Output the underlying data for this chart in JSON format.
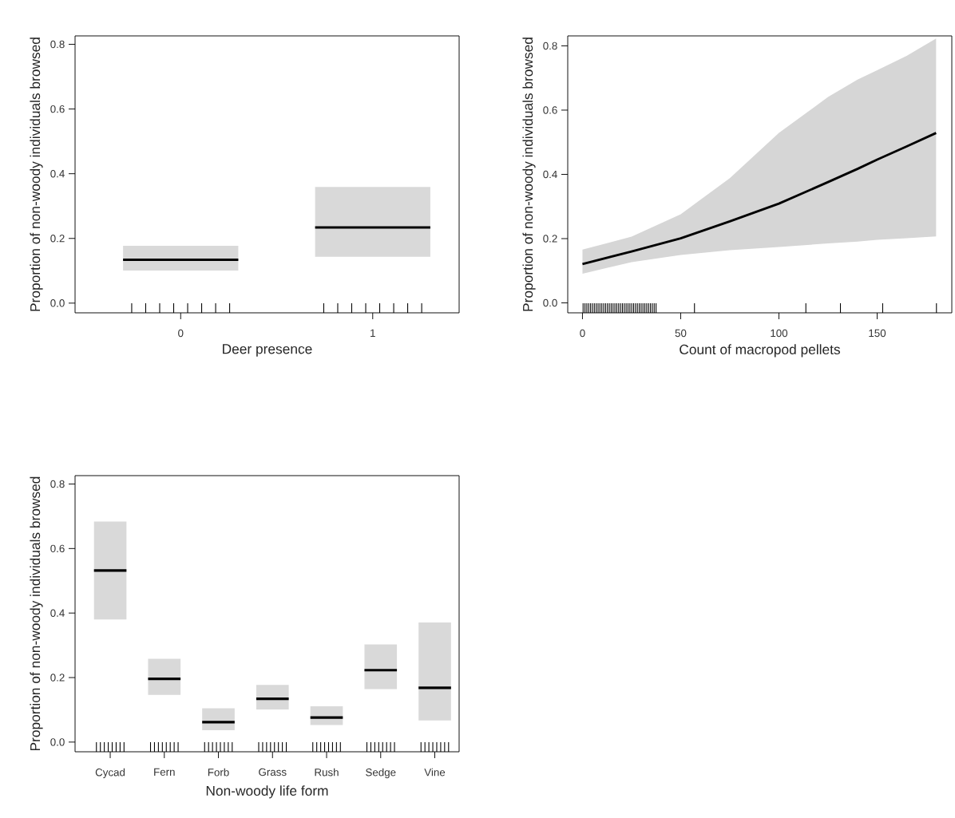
{
  "chart_data": [
    {
      "type": "box",
      "categories": [
        "0",
        "1"
      ],
      "xlabel": "Deer presence",
      "ylabel": "Proportion of non-woody individuals browsed",
      "ylim": [
        -0.03,
        0.826
      ],
      "yticks": [
        {
          "value": 0,
          "label": "0.0"
        },
        {
          "value": 0.2,
          "label": "0.2"
        },
        {
          "value": 0.4,
          "label": "0.4"
        },
        {
          "value": 0.6,
          "label": "0.6"
        },
        {
          "value": 0.8,
          "label": "0.8"
        }
      ],
      "series": [
        {
          "color": "#d9d9d9",
          "boxes": [
            {
              "low": 0.101,
              "q1": 0.101,
              "median": 0.134,
              "q3": 0.177,
              "high": 0.177
            },
            {
              "low": 0.143,
              "q1": 0.143,
              "median": 0.234,
              "q3": 0.359,
              "high": 0.359
            }
          ]
        }
      ]
    },
    {
      "type": "line",
      "xlabel": "Count of macropod pellets",
      "ylabel": "Proportion of non-woody individuals browsed",
      "xlim": [
        -7.5,
        188
      ],
      "ylim": [
        -0.031,
        0.831
      ],
      "xticks": [
        0,
        50,
        100,
        150
      ],
      "yticks": [
        {
          "value": 0,
          "label": "0.0"
        },
        {
          "value": 0.2,
          "label": "0.2"
        },
        {
          "value": 0.4,
          "label": "0.4"
        },
        {
          "value": 0.6,
          "label": "0.6"
        },
        {
          "value": 0.8,
          "label": "0.8"
        }
      ],
      "series": [
        {
          "color": "#000000",
          "x": [
            0,
            25,
            50,
            75,
            100,
            125,
            140,
            150,
            165,
            180
          ],
          "values": [
            0.121,
            0.16,
            0.201,
            0.254,
            0.309,
            0.376,
            0.417,
            0.446,
            0.487,
            0.529
          ],
          "lower": [
            0.091,
            0.127,
            0.149,
            0.164,
            0.174,
            0.185,
            0.191,
            0.196,
            0.201,
            0.207
          ],
          "upper": [
            0.166,
            0.206,
            0.276,
            0.388,
            0.529,
            0.641,
            0.695,
            0.724,
            0.769,
            0.823
          ]
        }
      ]
    },
    {
      "type": "box",
      "categories": [
        "Cycad",
        "Fern",
        "Forb",
        "Grass",
        "Rush",
        "Sedge",
        "Vine"
      ],
      "xlabel": "Non-woody life form",
      "ylabel": "Proportion of non-woody individuals browsed",
      "ylim": [
        -0.03,
        0.826
      ],
      "yticks": [
        {
          "value": 0,
          "label": "0.0"
        },
        {
          "value": 0.2,
          "label": "0.2"
        },
        {
          "value": 0.4,
          "label": "0.4"
        },
        {
          "value": 0.6,
          "label": "0.6"
        },
        {
          "value": 0.8,
          "label": "0.8"
        }
      ],
      "series": [
        {
          "color": "#d9d9d9",
          "boxes": [
            {
              "low": 0.38,
              "q1": 0.38,
              "median": 0.532,
              "q3": 0.684,
              "high": 0.684
            },
            {
              "low": 0.146,
              "q1": 0.146,
              "median": 0.196,
              "q3": 0.258,
              "high": 0.258
            },
            {
              "low": 0.037,
              "q1": 0.037,
              "median": 0.062,
              "q3": 0.105,
              "high": 0.105
            },
            {
              "low": 0.101,
              "q1": 0.101,
              "median": 0.134,
              "q3": 0.177,
              "high": 0.177
            },
            {
              "low": 0.053,
              "q1": 0.053,
              "median": 0.076,
              "q3": 0.111,
              "high": 0.111
            },
            {
              "low": 0.164,
              "q1": 0.164,
              "median": 0.223,
              "q3": 0.303,
              "high": 0.303
            },
            {
              "low": 0.067,
              "q1": 0.067,
              "median": 0.168,
              "q3": 0.371,
              "high": 0.371
            }
          ]
        }
      ]
    }
  ]
}
